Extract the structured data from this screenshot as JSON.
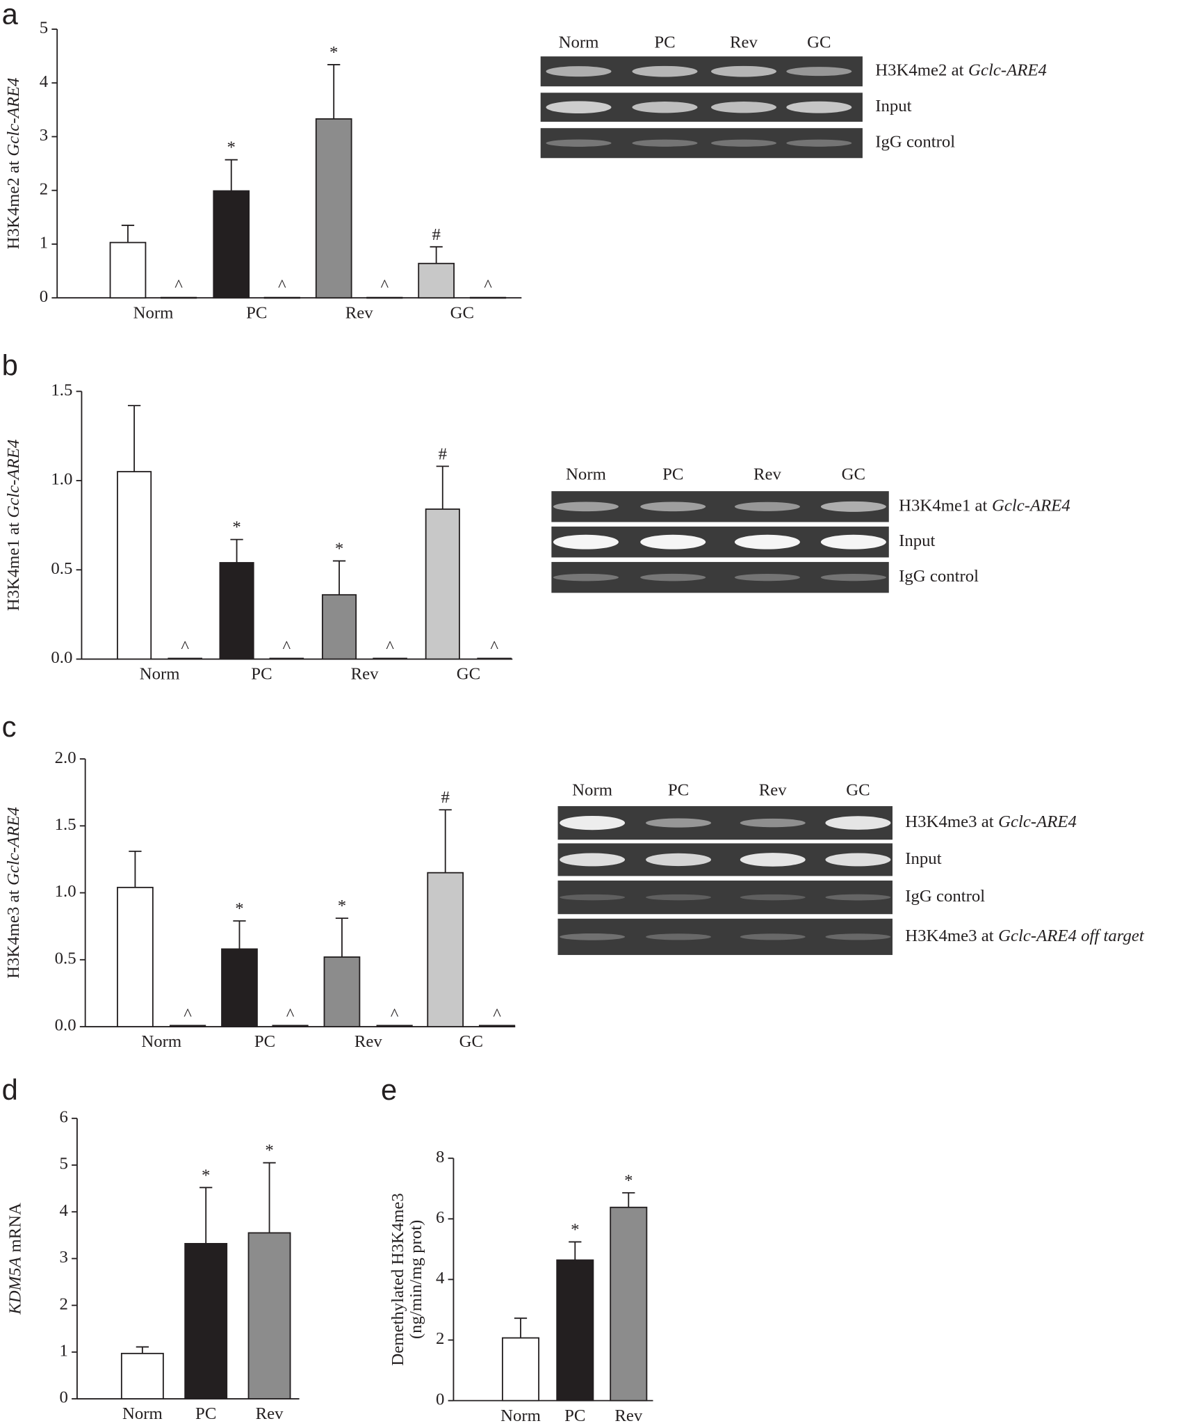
{
  "chart_data": [
    {
      "type": "bar",
      "panel": "a",
      "ylabel_parts": [
        {
          "text": "H3K4me2 at"
        },
        {
          "text": "Gclc-ARE4",
          "italic": true
        }
      ],
      "categories": [
        "Norm",
        "PC",
        "Rev",
        "GC"
      ],
      "values": [
        1.03,
        1.99,
        3.33,
        0.64
      ],
      "errors": [
        0.32,
        0.58,
        1.01,
        0.31
      ],
      "colors": [
        "#ffffff",
        "#231f20",
        "#8c8c8c",
        "#c8c8c8"
      ],
      "annotations": [
        null,
        "*",
        "*",
        "#"
      ],
      "igg_values": [
        0.01,
        0.01,
        0.01,
        0.01
      ],
      "igg_labels": [
        "^",
        "^",
        "^",
        "^"
      ],
      "ylim": [
        0,
        5
      ],
      "yticks": [
        0,
        1,
        2,
        3,
        4,
        5
      ],
      "gel": {
        "lanes": [
          "Norm",
          "PC",
          "Rev",
          "GC"
        ],
        "rows": [
          [
            {
              "text": "H3K4me2 at"
            },
            {
              "text": "Gclc-ARE4",
              "italic": true
            }
          ],
          [
            {
              "text": "Input"
            }
          ],
          [
            {
              "text": "IgG control"
            }
          ]
        ]
      }
    },
    {
      "type": "bar",
      "panel": "b",
      "ylabel_parts": [
        {
          "text": "H3K4me1 at"
        },
        {
          "text": "Gclc-ARE4",
          "italic": true
        }
      ],
      "categories": [
        "Norm",
        "PC",
        "Rev",
        "GC"
      ],
      "values": [
        1.05,
        0.54,
        0.36,
        0.84
      ],
      "errors": [
        0.37,
        0.13,
        0.19,
        0.24
      ],
      "colors": [
        "#ffffff",
        "#231f20",
        "#8c8c8c",
        "#c8c8c8"
      ],
      "annotations": [
        null,
        "*",
        "*",
        "#"
      ],
      "igg_values": [
        0.005,
        0.005,
        0.005,
        0.005
      ],
      "igg_labels": [
        "^",
        "^",
        "^",
        "^"
      ],
      "ylim": [
        0,
        1.5
      ],
      "yticks": [
        {
          "value": 0,
          "label": "0.0"
        },
        0.5,
        {
          "value": 1,
          "label": "1.0"
        },
        1.5
      ],
      "gel": {
        "lanes": [
          "Norm",
          "PC",
          "Rev",
          "GC"
        ],
        "rows": [
          [
            {
              "text": "H3K4me1 at"
            },
            {
              "text": "Gclc-ARE4",
              "italic": true
            }
          ],
          [
            {
              "text": "Input"
            }
          ],
          [
            {
              "text": "IgG control"
            }
          ]
        ]
      }
    },
    {
      "type": "bar",
      "panel": "c",
      "ylabel_parts": [
        {
          "text": "H3K4me3 at"
        },
        {
          "text": "Gclc-ARE4",
          "italic": true
        }
      ],
      "categories": [
        "Norm",
        "PC",
        "Rev",
        "GC"
      ],
      "values": [
        1.04,
        0.58,
        0.52,
        1.15
      ],
      "errors": [
        0.27,
        0.21,
        0.29,
        0.47
      ],
      "colors": [
        "#ffffff",
        "#231f20",
        "#8c8c8c",
        "#c8c8c8"
      ],
      "annotations": [
        null,
        "*",
        "*",
        "#"
      ],
      "igg_values": [
        0.01,
        0.01,
        0.01,
        0.01
      ],
      "igg_labels": [
        "^",
        "^",
        "^",
        "^"
      ],
      "ylim": [
        0,
        2
      ],
      "yticks": [
        {
          "value": 0,
          "label": "0.0"
        },
        0.5,
        {
          "value": 1,
          "label": "1.0"
        },
        1.5,
        {
          "value": 2,
          "label": "2.0"
        }
      ],
      "gel": {
        "lanes": [
          "Norm",
          "PC",
          "Rev",
          "GC"
        ],
        "rows": [
          [
            {
              "text": "H3K4me3 at"
            },
            {
              "text": "Gclc-ARE4",
              "italic": true
            }
          ],
          [
            {
              "text": "Input"
            }
          ],
          [
            {
              "text": "IgG control"
            }
          ],
          [
            {
              "text": "H3K4me3 at"
            },
            {
              "text": "Gclc-ARE4 off target",
              "italic": true
            }
          ]
        ]
      }
    },
    {
      "type": "bar",
      "panel": "d",
      "ylabel_parts": [
        {
          "text": "KDM5A",
          "italic": true
        },
        {
          "text": "mRNA"
        }
      ],
      "categories": [
        "Norm",
        "PC",
        "Rev"
      ],
      "values": [
        0.97,
        3.32,
        3.55
      ],
      "errors": [
        0.14,
        1.2,
        1.5
      ],
      "colors": [
        "#ffffff",
        "#231f20",
        "#8c8c8c"
      ],
      "annotations": [
        null,
        "*",
        "*"
      ],
      "ylim": [
        0,
        6
      ],
      "yticks": [
        0,
        1,
        2,
        3,
        4,
        5,
        6
      ]
    },
    {
      "type": "bar",
      "panel": "e",
      "ylabel_lines": [
        "Demethylated H3K4me3",
        "(ng/min/mg prot)"
      ],
      "categories": [
        "Norm",
        "PC",
        "Rev"
      ],
      "values": [
        2.07,
        4.64,
        6.38
      ],
      "errors": [
        0.65,
        0.6,
        0.48
      ],
      "colors": [
        "#ffffff",
        "#231f20",
        "#8c8c8c"
      ],
      "annotations": [
        null,
        "*",
        "*"
      ],
      "ylim": [
        0,
        8
      ],
      "yticks": [
        0,
        2,
        4,
        6,
        8
      ]
    }
  ]
}
